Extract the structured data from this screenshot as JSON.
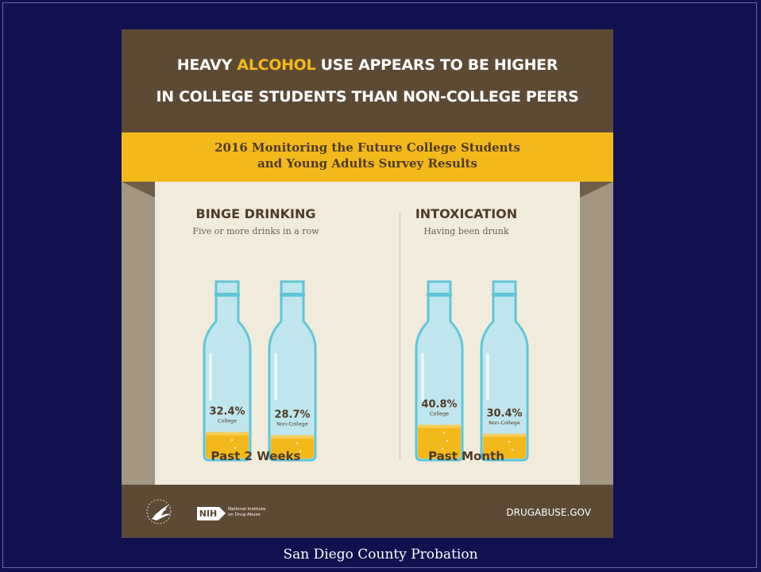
{
  "infographic": {
    "headline_line1_pre": "HEAVY ",
    "headline_line1_accent": "ALCOHOL",
    "headline_line1_post": " USE APPEARS TO BE HIGHER",
    "headline_line2": "IN COLLEGE STUDENTS THAN NON-COLLEGE PEERS",
    "ribbon_line1": "2016 Monitoring the Future College Students",
    "ribbon_line2": "and Young Adults Survey Results"
  },
  "chart_data": {
    "type": "bar",
    "panels": [
      {
        "title": "BINGE DRINKING",
        "subtitle": "Five or more drinks in a row",
        "period": "Past 2 Weeks",
        "series": [
          {
            "name": "College",
            "value": 32.4,
            "label": "32.4%"
          },
          {
            "name": "Non-College",
            "value": 28.7,
            "label": "28.7%"
          }
        ]
      },
      {
        "title": "INTOXICATION",
        "subtitle": "Having been drunk",
        "period": "Past Month",
        "series": [
          {
            "name": "College",
            "value": 40.8,
            "label": "40.8%"
          },
          {
            "name": "Non-College",
            "value": 30.4,
            "label": "30.4%"
          }
        ]
      }
    ],
    "unit": "%",
    "colors": {
      "liquid": "#f3b91a",
      "glass": "#bfe6ee",
      "outline": "#5fc6d8"
    }
  },
  "footer": {
    "nih_logo_text": "NIH",
    "nih_org_line1": "National Institute",
    "nih_org_line2": "on Drug Abuse",
    "website": "DRUGABUSE.GOV"
  },
  "slide": {
    "caption": "San Diego County Probation"
  },
  "colors": {
    "slide_background": "#11114f",
    "header_brown": "#5c4a34",
    "accent_yellow": "#f3b91a",
    "panel_cream": "#f1ebdc"
  }
}
